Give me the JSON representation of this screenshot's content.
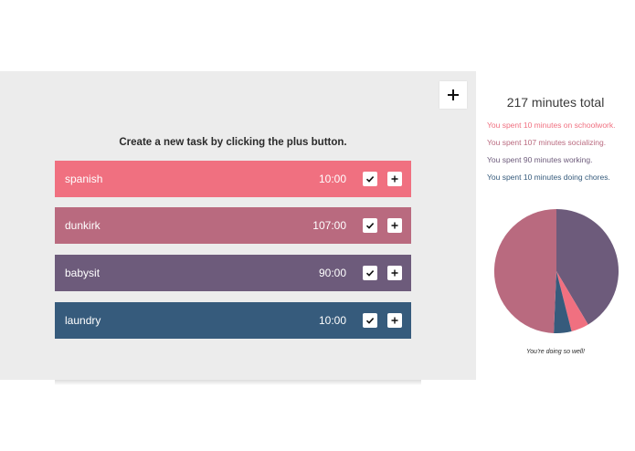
{
  "instructions": "Create a new task by clicking the plus button.",
  "tasks": [
    {
      "name": "spanish",
      "time": "10:00",
      "color": "#f07080"
    },
    {
      "name": "dunkirk",
      "time": "107:00",
      "color": "#b96a7f"
    },
    {
      "name": "babysit",
      "time": "90:00",
      "color": "#6d5b7b"
    },
    {
      "name": "laundry",
      "time": "10:00",
      "color": "#365b7c"
    }
  ],
  "summary": {
    "total": "217 minutes total",
    "lines": [
      {
        "text": "You spent 10 minutes on schoolwork.",
        "color": "#f07080"
      },
      {
        "text": "You spent 107 minutes socializing.",
        "color": "#b96a7f"
      },
      {
        "text": "You spent 90 minutes working.",
        "color": "#6d5b7b"
      },
      {
        "text": "You spent 10 minutes doing chores.",
        "color": "#365b7c"
      }
    ],
    "encouragement": "You're doing so well!"
  },
  "chart_data": {
    "type": "pie",
    "slices": [
      {
        "category": "schoolwork",
        "value": 10,
        "color": "#f07080"
      },
      {
        "category": "socializing",
        "value": 107,
        "color": "#b96a7f"
      },
      {
        "category": "working",
        "value": 90,
        "color": "#6d5b7b"
      },
      {
        "category": "chores",
        "value": 10,
        "color": "#365b7c"
      }
    ]
  },
  "icons": {
    "add": "plus-icon",
    "complete": "check-icon",
    "increment": "plus-icon"
  }
}
